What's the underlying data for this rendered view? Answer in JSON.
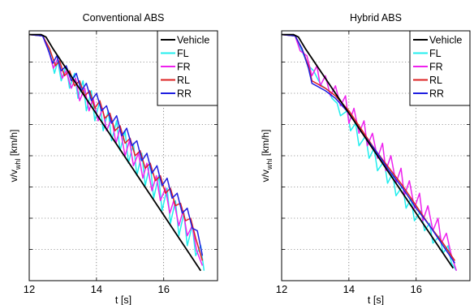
{
  "chart_data": [
    {
      "type": "line",
      "title": "Conventional ABS",
      "xlabel": "t [s]",
      "ylabel_main": "v/v",
      "ylabel_sub": "whl",
      "ylabel_unit": " [km/h]",
      "xlim": [
        12,
        17.6
      ],
      "ylim": [
        0,
        1
      ],
      "xticks": [
        12,
        14,
        16
      ],
      "xtick_labels": [
        "12",
        "14",
        "16"
      ],
      "grid": true,
      "legend_position": "top-right",
      "series": [
        {
          "name": "Vehicle",
          "color": "#000000",
          "x": [
            12.0,
            12.35,
            12.5,
            12.7,
            17.1
          ],
          "y": [
            0.985,
            0.985,
            0.975,
            0.93,
            0.04
          ]
        },
        {
          "name": "FL",
          "color": "#22eeee",
          "x": [
            12.0,
            12.4,
            12.6,
            12.75,
            12.85,
            12.95,
            13.1,
            13.2,
            13.35,
            13.45,
            13.6,
            13.7,
            13.85,
            13.95,
            14.1,
            14.2,
            14.35,
            14.45,
            14.6,
            14.7,
            14.85,
            14.95,
            15.1,
            15.2,
            15.35,
            15.45,
            15.6,
            15.7,
            15.85,
            15.95,
            16.1,
            16.2,
            16.35,
            16.45,
            16.6,
            16.7,
            16.85,
            16.95,
            17.1,
            17.2
          ],
          "y": [
            0.985,
            0.98,
            0.92,
            0.83,
            0.88,
            0.8,
            0.86,
            0.77,
            0.83,
            0.73,
            0.8,
            0.68,
            0.76,
            0.64,
            0.72,
            0.6,
            0.68,
            0.56,
            0.64,
            0.52,
            0.6,
            0.47,
            0.55,
            0.42,
            0.51,
            0.38,
            0.47,
            0.33,
            0.42,
            0.28,
            0.37,
            0.23,
            0.32,
            0.18,
            0.27,
            0.14,
            0.22,
            0.1,
            0.14,
            0.04
          ]
        },
        {
          "name": "FR",
          "color": "#ee22ee",
          "x": [
            12.0,
            12.4,
            12.6,
            12.72,
            12.85,
            12.98,
            13.1,
            13.25,
            13.38,
            13.5,
            13.65,
            13.78,
            13.9,
            14.05,
            14.18,
            14.3,
            14.45,
            14.58,
            14.7,
            14.85,
            14.98,
            15.1,
            15.25,
            15.38,
            15.5,
            15.65,
            15.78,
            15.9,
            16.05,
            16.18,
            16.3,
            16.45,
            16.58,
            16.7,
            16.85,
            16.98,
            17.15
          ],
          "y": [
            0.985,
            0.98,
            0.91,
            0.85,
            0.89,
            0.81,
            0.84,
            0.77,
            0.81,
            0.72,
            0.77,
            0.68,
            0.73,
            0.64,
            0.69,
            0.6,
            0.65,
            0.55,
            0.61,
            0.5,
            0.56,
            0.46,
            0.51,
            0.41,
            0.47,
            0.36,
            0.42,
            0.32,
            0.37,
            0.27,
            0.32,
            0.22,
            0.28,
            0.18,
            0.22,
            0.12,
            0.06
          ]
        },
        {
          "name": "RL",
          "color": "#dd2222",
          "x": [
            12.0,
            12.4,
            12.6,
            12.78,
            12.9,
            13.05,
            13.2,
            13.35,
            13.5,
            13.65,
            13.8,
            13.95,
            14.1,
            14.25,
            14.4,
            14.55,
            14.7,
            14.85,
            15.0,
            15.15,
            15.3,
            15.45,
            15.6,
            15.75,
            15.9,
            16.05,
            16.2,
            16.35,
            16.5,
            16.65,
            16.8,
            16.95,
            17.15
          ],
          "y": [
            0.985,
            0.98,
            0.93,
            0.86,
            0.88,
            0.82,
            0.84,
            0.78,
            0.8,
            0.74,
            0.76,
            0.69,
            0.72,
            0.65,
            0.67,
            0.6,
            0.62,
            0.55,
            0.57,
            0.5,
            0.52,
            0.45,
            0.47,
            0.4,
            0.42,
            0.35,
            0.37,
            0.3,
            0.31,
            0.24,
            0.25,
            0.17,
            0.08
          ]
        },
        {
          "name": "RR",
          "color": "#1f1fe0",
          "x": [
            12.0,
            12.4,
            12.55,
            12.7,
            12.82,
            12.95,
            13.1,
            13.25,
            13.4,
            13.55,
            13.7,
            13.85,
            14.0,
            14.15,
            14.3,
            14.45,
            14.6,
            14.75,
            14.9,
            15.05,
            15.2,
            15.35,
            15.5,
            15.65,
            15.8,
            15.95,
            16.1,
            16.25,
            16.4,
            16.55,
            16.7,
            16.85,
            17.0,
            17.15
          ],
          "y": [
            0.985,
            0.98,
            0.93,
            0.87,
            0.9,
            0.84,
            0.86,
            0.8,
            0.83,
            0.76,
            0.79,
            0.72,
            0.75,
            0.68,
            0.7,
            0.63,
            0.66,
            0.58,
            0.61,
            0.54,
            0.56,
            0.48,
            0.51,
            0.43,
            0.46,
            0.38,
            0.41,
            0.33,
            0.35,
            0.27,
            0.29,
            0.21,
            0.2,
            0.1
          ]
        }
      ]
    },
    {
      "type": "line",
      "title": "Hybrid ABS",
      "xlabel": "t [s]",
      "ylabel_main": "v/v",
      "ylabel_sub": "whl",
      "ylabel_unit": " [km/h]",
      "xlim": [
        12,
        17.6
      ],
      "ylim": [
        0,
        1
      ],
      "xticks": [
        12,
        14,
        16
      ],
      "xtick_labels": [
        "12",
        "14",
        "16"
      ],
      "grid": true,
      "legend_position": "top-right",
      "series": [
        {
          "name": "Vehicle",
          "color": "#000000",
          "x": [
            12.0,
            12.35,
            12.5,
            12.7,
            17.1
          ],
          "y": [
            0.985,
            0.985,
            0.975,
            0.93,
            0.05
          ]
        },
        {
          "name": "FL",
          "color": "#22eeee",
          "x": [
            12.0,
            12.4,
            12.6,
            12.8,
            12.95,
            13.1,
            13.2,
            13.4,
            13.5,
            13.65,
            13.75,
            13.95,
            14.05,
            14.2,
            14.3,
            14.5,
            14.6,
            14.75,
            14.85,
            15.05,
            15.15,
            15.3,
            15.4,
            15.6,
            15.7,
            15.85,
            15.95,
            16.15,
            16.25,
            16.4,
            16.5,
            16.7,
            16.8,
            16.95,
            17.05,
            17.2
          ],
          "y": [
            0.985,
            0.98,
            0.92,
            0.86,
            0.84,
            0.8,
            0.78,
            0.76,
            0.73,
            0.71,
            0.66,
            0.68,
            0.6,
            0.63,
            0.54,
            0.58,
            0.49,
            0.53,
            0.44,
            0.48,
            0.39,
            0.43,
            0.34,
            0.38,
            0.29,
            0.33,
            0.24,
            0.28,
            0.2,
            0.23,
            0.15,
            0.18,
            0.11,
            0.14,
            0.07,
            0.04
          ]
        },
        {
          "name": "FR",
          "color": "#ee22ee",
          "x": [
            12.0,
            12.4,
            12.55,
            12.75,
            12.9,
            13.05,
            13.15,
            13.3,
            13.45,
            13.6,
            13.75,
            13.9,
            14.0,
            14.15,
            14.3,
            14.45,
            14.55,
            14.7,
            14.85,
            15.0,
            15.1,
            15.25,
            15.4,
            15.55,
            15.65,
            15.8,
            15.95,
            16.1,
            16.2,
            16.35,
            16.5,
            16.65,
            16.75,
            16.9,
            17.05,
            17.2
          ],
          "y": [
            0.985,
            0.98,
            0.92,
            0.9,
            0.82,
            0.86,
            0.78,
            0.82,
            0.74,
            0.78,
            0.7,
            0.74,
            0.63,
            0.69,
            0.59,
            0.64,
            0.54,
            0.59,
            0.49,
            0.55,
            0.44,
            0.5,
            0.39,
            0.45,
            0.34,
            0.4,
            0.29,
            0.35,
            0.24,
            0.3,
            0.2,
            0.25,
            0.15,
            0.19,
            0.1,
            0.04
          ]
        },
        {
          "name": "RL",
          "color": "#dd2222",
          "x": [
            12.0,
            12.4,
            12.6,
            12.8,
            12.9,
            13.3,
            13.6,
            14.0,
            14.4,
            14.8,
            15.2,
            15.6,
            16.0,
            16.4,
            16.8,
            17.15
          ],
          "y": [
            0.985,
            0.98,
            0.93,
            0.86,
            0.8,
            0.77,
            0.74,
            0.68,
            0.6,
            0.52,
            0.45,
            0.38,
            0.3,
            0.22,
            0.15,
            0.08
          ]
        },
        {
          "name": "RR",
          "color": "#1f1fe0",
          "x": [
            12.0,
            12.4,
            12.6,
            12.8,
            12.9,
            13.3,
            13.6,
            14.0,
            14.4,
            14.8,
            15.2,
            15.6,
            16.0,
            16.4,
            16.8,
            17.15
          ],
          "y": [
            0.985,
            0.98,
            0.93,
            0.85,
            0.79,
            0.76,
            0.73,
            0.67,
            0.59,
            0.52,
            0.44,
            0.37,
            0.29,
            0.22,
            0.14,
            0.07
          ]
        }
      ]
    }
  ]
}
